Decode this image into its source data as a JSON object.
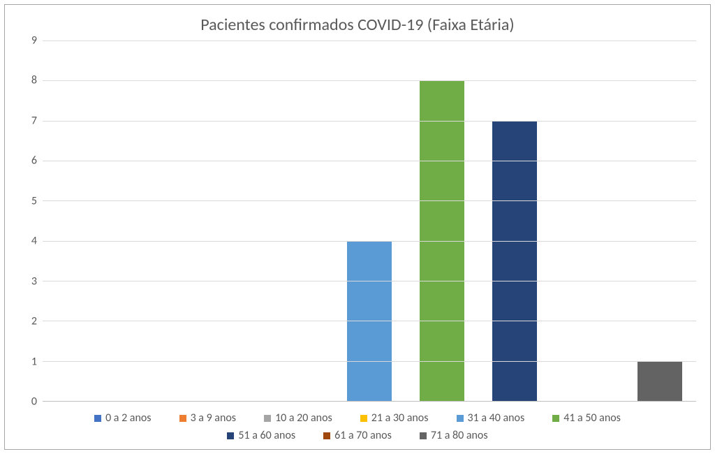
{
  "chart": {
    "type": "bar",
    "title": "Pacientes confirmados COVID-19 (Faixa Etária)",
    "title_fontsize": 24,
    "title_color": "#595959",
    "background_color": "#ffffff",
    "border_color": "#a6a6a6",
    "grid_color": "#d9d9d9",
    "axis_line_color": "#bfbfbf",
    "label_color": "#595959",
    "label_fontsize": 16,
    "ylim": [
      0,
      9
    ],
    "ytick_step": 1,
    "yticks": [
      0,
      1,
      2,
      3,
      4,
      5,
      6,
      7,
      8,
      9
    ],
    "bar_width": 0.62,
    "categories": [
      "0 a 2 anos",
      "3 a 9 anos",
      "10 a 20 anos",
      "21 a 30 anos",
      "31 a 40 anos",
      "41 a 50 anos",
      "51 a 60 anos",
      "61 a 70 anos",
      "71 a 80 anos"
    ],
    "values": [
      0,
      0,
      0,
      0,
      4,
      8,
      7,
      0,
      1
    ],
    "bar_colors": [
      "#4472c4",
      "#ed7d31",
      "#a5a5a5",
      "#ffc000",
      "#5b9bd5",
      "#70ad47",
      "#264478",
      "#9e480e",
      "#636363"
    ],
    "legend_position": "bottom",
    "legend_items": [
      {
        "label": "0 a 2 anos",
        "color": "#4472c4"
      },
      {
        "label": "3 a 9 anos",
        "color": "#ed7d31"
      },
      {
        "label": "10 a 20 anos",
        "color": "#a5a5a5"
      },
      {
        "label": "21 a 30 anos",
        "color": "#ffc000"
      },
      {
        "label": "31 a 40 anos",
        "color": "#5b9bd5"
      },
      {
        "label": "41 a 50 anos",
        "color": "#70ad47"
      },
      {
        "label": "51 a 60 anos",
        "color": "#264478"
      },
      {
        "label": "61 a 70 anos",
        "color": "#9e480e"
      },
      {
        "label": "71 a 80 anos",
        "color": "#636363"
      }
    ]
  }
}
